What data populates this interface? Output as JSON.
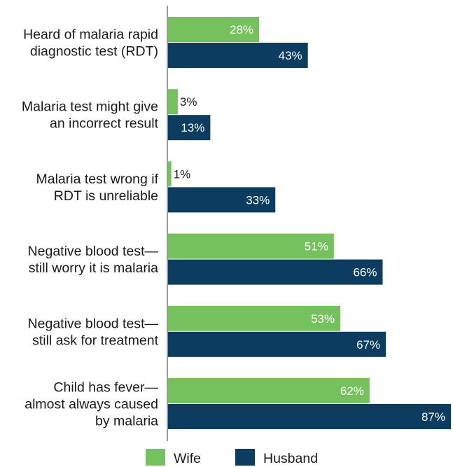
{
  "chart_data": {
    "type": "bar",
    "orientation": "horizontal",
    "categories": [
      [
        "Heard of malaria rapid",
        "diagnostic test (RDT)"
      ],
      [
        "Malaria test might give",
        "an incorrect result"
      ],
      [
        "Malaria test wrong if",
        "RDT is unreliable"
      ],
      [
        "Negative blood test—",
        "still worry it is malaria"
      ],
      [
        "Negative blood test—",
        "still ask for treatment"
      ],
      [
        "Child has fever—",
        "almost always caused",
        "by malaria"
      ]
    ],
    "series": [
      {
        "name": "Wife",
        "color": "#74c15d",
        "values": [
          28,
          3,
          1,
          51,
          53,
          62
        ]
      },
      {
        "name": "Husband",
        "color": "#0c3c60",
        "values": [
          43,
          13,
          33,
          66,
          67,
          87
        ]
      }
    ],
    "value_suffix": "%",
    "xlim": [
      0,
      87
    ],
    "grid": false,
    "legend": "bottom"
  }
}
